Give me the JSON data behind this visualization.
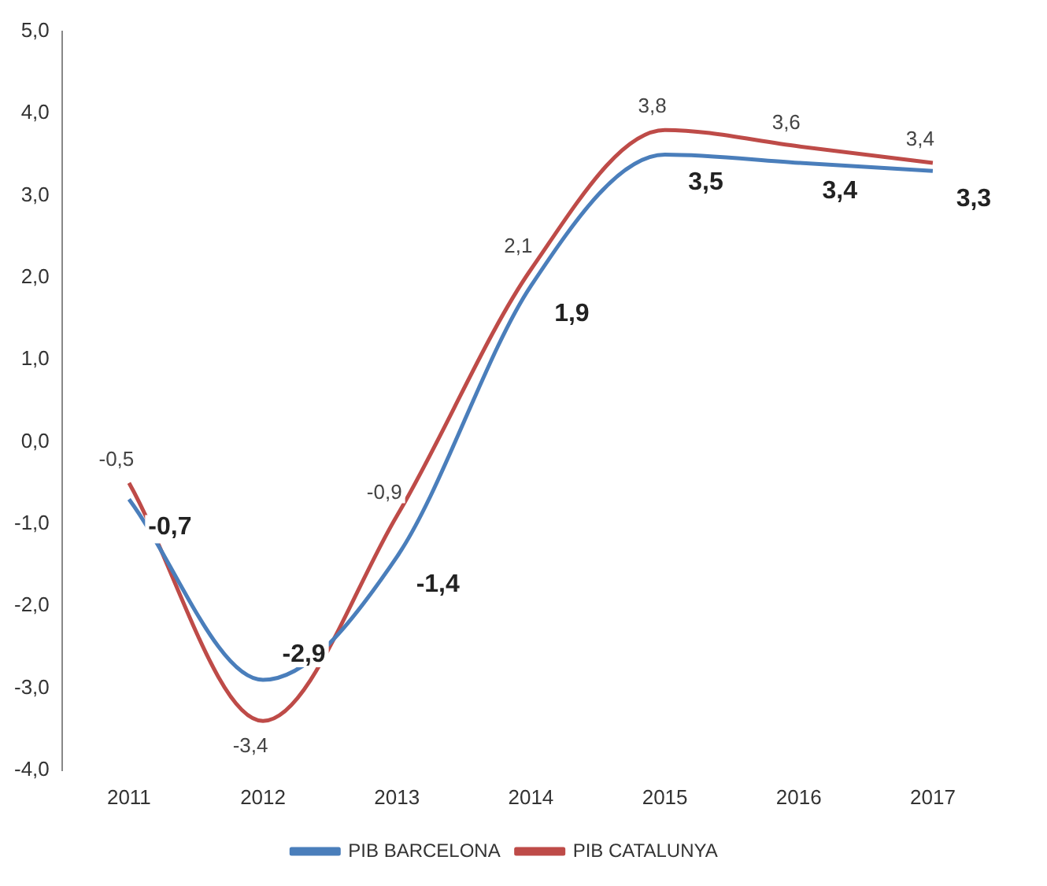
{
  "chart_data": {
    "type": "line",
    "categories": [
      "2011",
      "2012",
      "2013",
      "2014",
      "2015",
      "2016",
      "2017"
    ],
    "series": [
      {
        "name": "PIB BARCELONA",
        "color": "#4a7ebb",
        "values": [
          -0.7,
          -2.9,
          -1.4,
          1.9,
          3.5,
          3.4,
          3.3
        ],
        "value_labels": [
          "-0,7",
          "-2,9",
          "-1,4",
          "1,9",
          "3,5",
          "3,4",
          "3,3"
        ]
      },
      {
        "name": "PIB CATALUNYA",
        "color": "#be4b48",
        "values": [
          -0.5,
          -3.4,
          -0.9,
          2.1,
          3.8,
          3.6,
          3.4
        ],
        "value_labels": [
          "-0,5",
          "-3,4",
          "-0,9",
          "2,1",
          "3,8",
          "3,6",
          "3,4"
        ]
      }
    ],
    "ylim": [
      -4,
      5
    ],
    "yticks": [
      {
        "value": -4,
        "label": "-4,0"
      },
      {
        "value": -3,
        "label": "-3,0"
      },
      {
        "value": -2,
        "label": "-2,0"
      },
      {
        "value": -1,
        "label": "-1,0"
      },
      {
        "value": 0,
        "label": "0,0"
      },
      {
        "value": 1,
        "label": "1,0"
      },
      {
        "value": 2,
        "label": "2,0"
      },
      {
        "value": 3,
        "label": "3,0"
      },
      {
        "value": 4,
        "label": "4,0"
      },
      {
        "value": 5,
        "label": "5,0"
      }
    ],
    "grid": false,
    "legend": "bottom",
    "marker": "none",
    "line_style": "solid"
  }
}
